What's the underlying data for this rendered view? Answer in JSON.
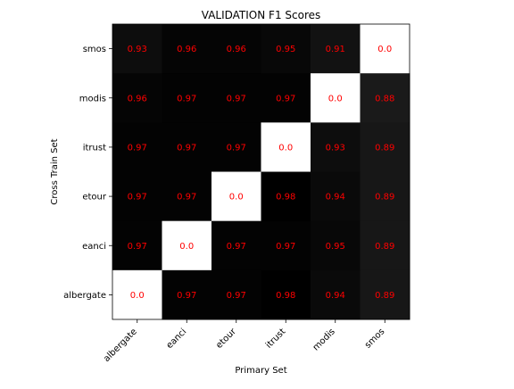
{
  "chart_data": {
    "type": "heatmap",
    "title": "VALIDATION F1 Scores",
    "xlabel": "Primary Set",
    "ylabel": "Cross Train Set",
    "x_categories": [
      "albergate",
      "eanci",
      "etour",
      "itrust",
      "modis",
      "smos"
    ],
    "y_categories": [
      "smos",
      "modis",
      "itrust",
      "etour",
      "eanci",
      "albergate"
    ],
    "values": [
      [
        0.93,
        0.96,
        0.96,
        0.95,
        0.91,
        0.0
      ],
      [
        0.96,
        0.97,
        0.97,
        0.97,
        0.0,
        0.88
      ],
      [
        0.97,
        0.97,
        0.97,
        0.0,
        0.93,
        0.89
      ],
      [
        0.97,
        0.97,
        0.0,
        0.98,
        0.94,
        0.89
      ],
      [
        0.97,
        0.0,
        0.97,
        0.97,
        0.95,
        0.89
      ],
      [
        0.0,
        0.97,
        0.97,
        0.98,
        0.94,
        0.89
      ]
    ],
    "value_labels": [
      [
        "0.93",
        "0.96",
        "0.96",
        "0.95",
        "0.91",
        "0.0"
      ],
      [
        "0.96",
        "0.97",
        "0.97",
        "0.97",
        "0.0",
        "0.88"
      ],
      [
        "0.97",
        "0.97",
        "0.97",
        "0.0",
        "0.93",
        "0.89"
      ],
      [
        "0.97",
        "0.97",
        "0.0",
        "0.98",
        "0.94",
        "0.89"
      ],
      [
        "0.97",
        "0.0",
        "0.97",
        "0.97",
        "0.95",
        "0.89"
      ],
      [
        "0.0",
        "0.97",
        "0.97",
        "0.98",
        "0.94",
        "0.89"
      ]
    ],
    "colormap": "gray_r",
    "value_range": [
      0.0,
      0.98
    ],
    "annotation_color": "#ff0000",
    "grid": false,
    "legend": "none",
    "x_tick_rotation": 45
  }
}
